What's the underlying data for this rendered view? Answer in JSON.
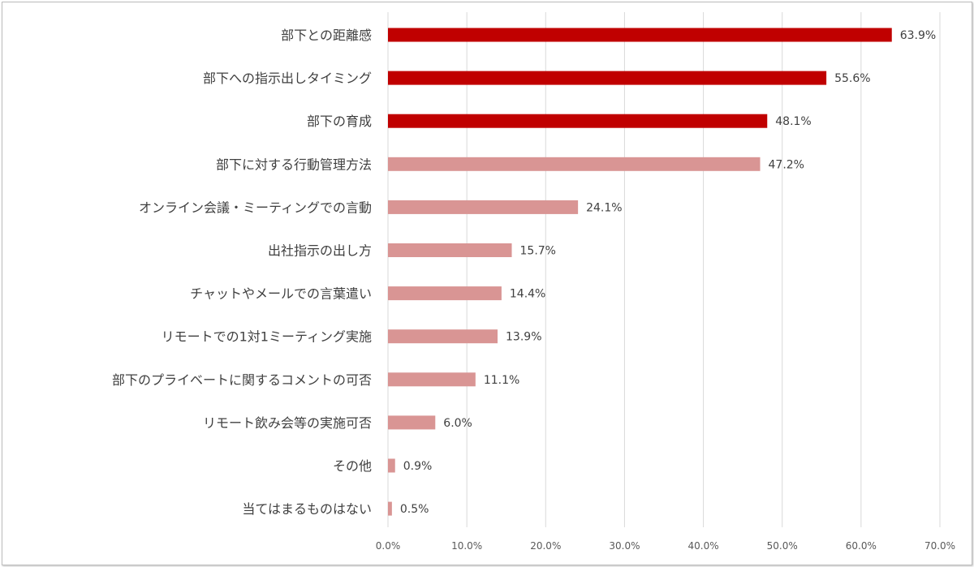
{
  "chart_data": {
    "type": "bar",
    "orientation": "horizontal",
    "categories": [
      "部下との距離感",
      "部下への指示出しタイミング",
      "部下の育成",
      "部下に対する行動管理方法",
      "オンライン会議・ミーティングでの言動",
      "出社指示の出し方",
      "チャットやメールでの言葉遣い",
      "リモートでの1対1ミーティング実施",
      "部下のプライベートに関するコメントの可否",
      "リモート飲み会等の実施可否",
      "その他",
      "当てはまるものはない"
    ],
    "values": [
      63.9,
      55.6,
      48.1,
      47.2,
      24.1,
      15.7,
      14.4,
      13.9,
      11.1,
      6.0,
      0.9,
      0.5
    ],
    "value_labels": [
      "63.9%",
      "55.6%",
      "48.1%",
      "47.2%",
      "24.1%",
      "15.7%",
      "14.4%",
      "13.9%",
      "11.1%",
      "6.0%",
      "0.9%",
      "0.5%"
    ],
    "highlight_count": 3,
    "colors": {
      "highlight": "#c00000",
      "normal": "#d99594"
    },
    "xlim": [
      0,
      70
    ],
    "xticks": [
      "0.0%",
      "10.0%",
      "20.0%",
      "30.0%",
      "40.0%",
      "50.0%",
      "60.0%",
      "70.0%"
    ],
    "grid": true,
    "title": "",
    "xlabel": "",
    "ylabel": ""
  }
}
